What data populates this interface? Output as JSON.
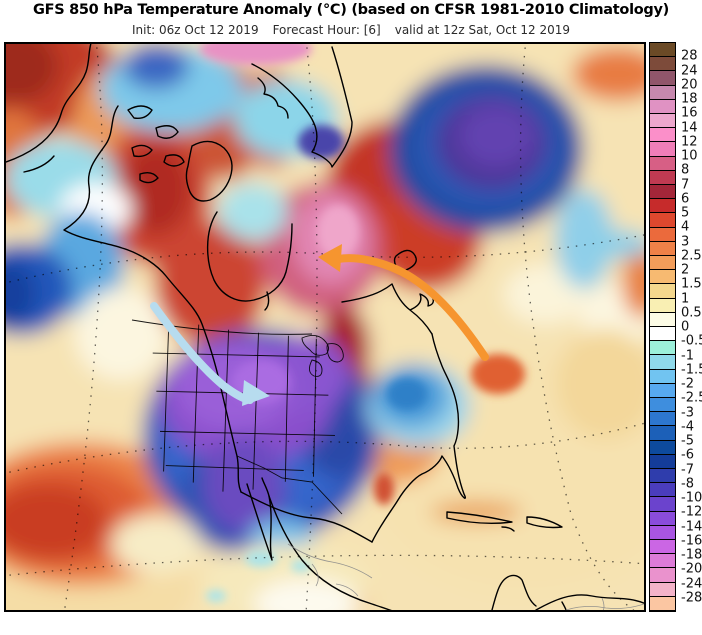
{
  "header": {
    "title": "GFS 850 hPa Temperature Anomaly (°C) (based on CFSR 1981-2010 Climatology)",
    "init": "Init: 06z Oct 12 2019",
    "forecast_hour": "Forecast Hour: [6]",
    "valid": "valid at 12z Sat, Oct 12 2019"
  },
  "map": {
    "description": "850 hPa temperature anomaly field over North America and adjacent oceans",
    "annotations": [
      {
        "name": "cold-advection-arrow",
        "color": "#b7dcef",
        "meaning": "cold anomaly push southeastward into central United States"
      },
      {
        "name": "warm-advection-arrow",
        "color": "#f6952f",
        "meaning": "warm anomaly push westward into eastern Canada"
      }
    ]
  },
  "colorbar": {
    "units": "°C",
    "tick_labels": [
      "28",
      "24",
      "20",
      "18",
      "16",
      "14",
      "12",
      "10",
      "8",
      "7",
      "6",
      "5",
      "4",
      "3",
      "2.5",
      "2",
      "1.5",
      "1",
      "0.5",
      "0",
      "-0.5",
      "-1",
      "-1.5",
      "-2",
      "-2.5",
      "-3",
      "-4",
      "-5",
      "-6",
      "-7",
      "-8",
      "-10",
      "-12",
      "-14",
      "-16",
      "-18",
      "-20",
      "-24",
      "-28"
    ],
    "cells": [
      {
        "color": "#6b4a26",
        "stipple": "dark"
      },
      {
        "color": "#7d4b3a",
        "stipple": "dark"
      },
      {
        "color": "#90566b",
        "stipple": "dark"
      },
      {
        "color": "#c688ae",
        "stipple": "dark"
      },
      {
        "color": "#e092c3",
        "stipple": "dark"
      },
      {
        "color": "#eda7cd",
        "stipple": "none"
      },
      {
        "color": "#fb8fc9",
        "stipple": "none"
      },
      {
        "color": "#f07eb8",
        "stipple": "none"
      },
      {
        "color": "#d75f85",
        "stipple": "none"
      },
      {
        "color": "#c03a52",
        "stipple": "none"
      },
      {
        "color": "#a32639",
        "stipple": "none"
      },
      {
        "color": "#c62b2b",
        "stipple": "none"
      },
      {
        "color": "#de482e",
        "stipple": "none"
      },
      {
        "color": "#eb6a3c",
        "stipple": "none"
      },
      {
        "color": "#ef8148",
        "stipple": "none"
      },
      {
        "color": "#f39d5a",
        "stipple": "none"
      },
      {
        "color": "#f7ba71",
        "stipple": "none"
      },
      {
        "color": "#f4d78d",
        "stipple": "none"
      },
      {
        "color": "#f9efb3",
        "stipple": "none"
      },
      {
        "color": "#fdfce6",
        "stipple": "none"
      },
      {
        "color": "#ffffff",
        "stipple": "none"
      },
      {
        "color": "#9cf0da",
        "stipple": "none"
      },
      {
        "color": "#8fd9ea",
        "stipple": "none"
      },
      {
        "color": "#71c4f1",
        "stipple": "none"
      },
      {
        "color": "#57a9ef",
        "stipple": "none"
      },
      {
        "color": "#3e8ede",
        "stipple": "none"
      },
      {
        "color": "#2d77cf",
        "stipple": "none"
      },
      {
        "color": "#1c60b8",
        "stipple": "none"
      },
      {
        "color": "#0d4a9d",
        "stipple": "none"
      },
      {
        "color": "#143c99",
        "stipple": "none"
      },
      {
        "color": "#2f3dac",
        "stipple": "none"
      },
      {
        "color": "#4a3dbd",
        "stipple": "none"
      },
      {
        "color": "#6b43cd",
        "stipple": "none"
      },
      {
        "color": "#8a4cdb",
        "stipple": "none"
      },
      {
        "color": "#a855e2",
        "stipple": "none"
      },
      {
        "color": "#cb66e4",
        "stipple": "light"
      },
      {
        "color": "#dd7bd8",
        "stipple": "light"
      },
      {
        "color": "#ea92cd",
        "stipple": "light"
      },
      {
        "color": "#f3b3c9",
        "stipple": "light"
      },
      {
        "color": "#fbc6a2",
        "stipple": "none"
      }
    ]
  }
}
